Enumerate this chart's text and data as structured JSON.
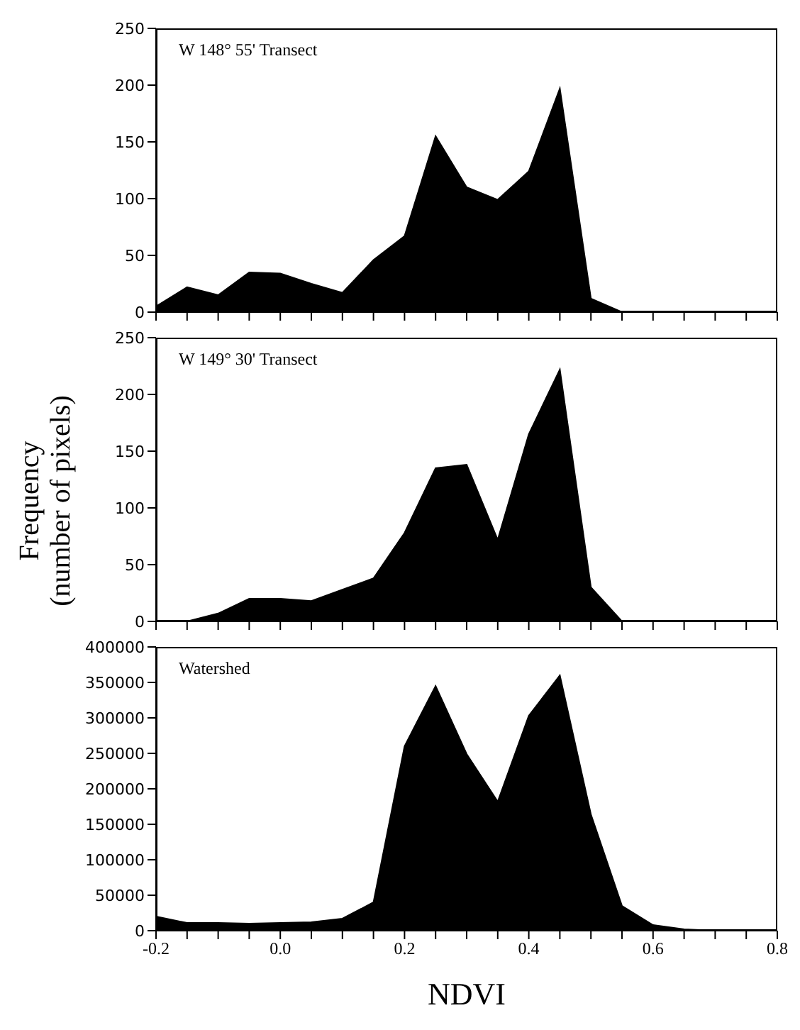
{
  "chart_data": [
    {
      "type": "area",
      "title": "W 148°  55'  Transect",
      "x": [
        -0.2,
        -0.15,
        -0.1,
        -0.05,
        0,
        0.05,
        0.1,
        0.15,
        0.2,
        0.25,
        0.3,
        0.35,
        0.4,
        0.45,
        0.5,
        0.55,
        0.6,
        0.65,
        0.7,
        0.75,
        0.8
      ],
      "series": [
        {
          "color": "#000000",
          "values": [
            5,
            22,
            15,
            35,
            34,
            25,
            17,
            46,
            67,
            155,
            110,
            99,
            124,
            197,
            12,
            0,
            0,
            0,
            0,
            0,
            0
          ]
        }
      ],
      "xlim": [
        -0.2,
        0.8
      ],
      "xticks": [
        {
          "value": -0.2,
          "label": null
        },
        {
          "value": -0.15,
          "label": null
        },
        {
          "value": -0.1,
          "label": null
        },
        {
          "value": -0.05,
          "label": null
        },
        {
          "value": 0,
          "label": null
        },
        {
          "value": 0.05,
          "label": null
        },
        {
          "value": 0.1,
          "label": null
        },
        {
          "value": 0.15,
          "label": null
        },
        {
          "value": 0.2,
          "label": null
        },
        {
          "value": 0.25,
          "label": null
        },
        {
          "value": 0.3,
          "label": null
        },
        {
          "value": 0.35,
          "label": null
        },
        {
          "value": 0.4,
          "label": null
        },
        {
          "value": 0.45,
          "label": null
        },
        {
          "value": 0.5,
          "label": null
        },
        {
          "value": 0.55,
          "label": null
        },
        {
          "value": 0.6,
          "label": null
        },
        {
          "value": 0.65,
          "label": null
        },
        {
          "value": 0.7,
          "label": null
        },
        {
          "value": 0.75,
          "label": null
        },
        {
          "value": 0.8,
          "label": null
        }
      ],
      "ylim": [
        0,
        250
      ],
      "yticks": [
        0,
        50,
        100,
        150,
        200,
        250
      ],
      "tick_labels": "y"
    },
    {
      "type": "area",
      "title": "W 149° 30' Transect",
      "ylabel": "Frequency\n(number of pixels)",
      "x": [
        -0.2,
        -0.15,
        -0.1,
        -0.05,
        0,
        0.05,
        0.1,
        0.15,
        0.2,
        0.25,
        0.3,
        0.35,
        0.4,
        0.45,
        0.5,
        0.55,
        0.6,
        0.65,
        0.7,
        0.75,
        0.8
      ],
      "series": [
        {
          "color": "#000000",
          "values": [
            0,
            0,
            7,
            20,
            20,
            18,
            28,
            38,
            78,
            135,
            138,
            72,
            165,
            222,
            30,
            0,
            0,
            0,
            0,
            0,
            0
          ]
        }
      ],
      "xlim": [
        -0.2,
        0.8
      ],
      "xticks": [
        {
          "value": -0.2,
          "label": null
        },
        {
          "value": -0.15,
          "label": null
        },
        {
          "value": -0.1,
          "label": null
        },
        {
          "value": -0.05,
          "label": null
        },
        {
          "value": 0,
          "label": null
        },
        {
          "value": 0.05,
          "label": null
        },
        {
          "value": 0.1,
          "label": null
        },
        {
          "value": 0.15,
          "label": null
        },
        {
          "value": 0.2,
          "label": null
        },
        {
          "value": 0.25,
          "label": null
        },
        {
          "value": 0.3,
          "label": null
        },
        {
          "value": 0.35,
          "label": null
        },
        {
          "value": 0.4,
          "label": null
        },
        {
          "value": 0.45,
          "label": null
        },
        {
          "value": 0.5,
          "label": null
        },
        {
          "value": 0.55,
          "label": null
        },
        {
          "value": 0.6,
          "label": null
        },
        {
          "value": 0.65,
          "label": null
        },
        {
          "value": 0.7,
          "label": null
        },
        {
          "value": 0.75,
          "label": null
        },
        {
          "value": 0.8,
          "label": null
        }
      ],
      "ylim": [
        0,
        250
      ],
      "yticks": [
        0,
        50,
        100,
        150,
        200,
        250
      ],
      "tick_labels": "y"
    },
    {
      "type": "area",
      "title": "Watershed",
      "xlabel": "NDVI",
      "x": [
        -0.2,
        -0.15,
        -0.1,
        -0.05,
        0,
        0.05,
        0.1,
        0.15,
        0.2,
        0.25,
        0.3,
        0.35,
        0.4,
        0.45,
        0.5,
        0.55,
        0.6,
        0.65,
        0.7,
        0.75,
        0.8
      ],
      "series": [
        {
          "color": "#000000",
          "values": [
            20000,
            11000,
            11000,
            10000,
            11000,
            12000,
            17000,
            40000,
            260000,
            345000,
            249000,
            182000,
            303000,
            360000,
            164000,
            35000,
            8000,
            2000,
            0,
            0,
            0
          ]
        }
      ],
      "xlim": [
        -0.2,
        0.8
      ],
      "xticks": [
        {
          "value": -0.2,
          "label": "-0.2"
        },
        {
          "value": -0.15,
          "label": null
        },
        {
          "value": -0.1,
          "label": null
        },
        {
          "value": -0.05,
          "label": null
        },
        {
          "value": 0,
          "label": "0.0"
        },
        {
          "value": 0.05,
          "label": null
        },
        {
          "value": 0.1,
          "label": null
        },
        {
          "value": 0.15,
          "label": null
        },
        {
          "value": 0.2,
          "label": "0.2"
        },
        {
          "value": 0.25,
          "label": null
        },
        {
          "value": 0.3,
          "label": null
        },
        {
          "value": 0.35,
          "label": null
        },
        {
          "value": 0.4,
          "label": "0.4"
        },
        {
          "value": 0.45,
          "label": null
        },
        {
          "value": 0.5,
          "label": null
        },
        {
          "value": 0.55,
          "label": null
        },
        {
          "value": 0.6,
          "label": "0.6"
        },
        {
          "value": 0.65,
          "label": null
        },
        {
          "value": 0.7,
          "label": null
        },
        {
          "value": 0.75,
          "label": null
        },
        {
          "value": 0.8,
          "label": "0.8"
        }
      ],
      "ylim": [
        0,
        400000
      ],
      "yticks": [
        0,
        50000,
        100000,
        150000,
        200000,
        250000,
        300000,
        350000,
        400000
      ]
    }
  ]
}
